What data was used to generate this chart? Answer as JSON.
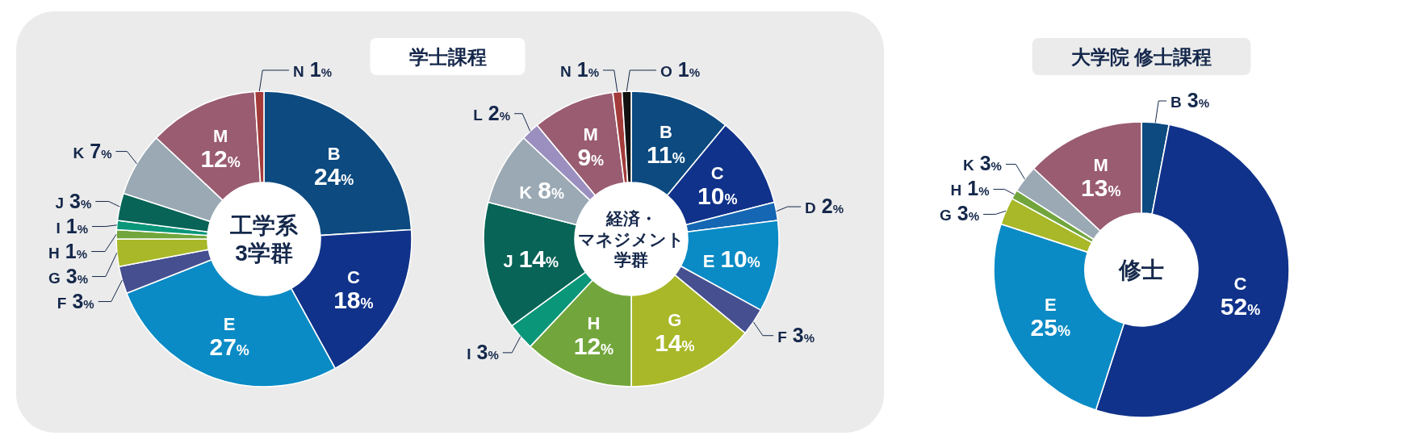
{
  "chart_data": [
    {
      "type": "donut",
      "title": "工学系3学群",
      "subtitle": "学士課程",
      "categories": [
        "B",
        "C",
        "E",
        "F",
        "G",
        "H",
        "I",
        "J",
        "K",
        "M",
        "N"
      ],
      "values": [
        24,
        18,
        27,
        3,
        3,
        1,
        1,
        3,
        7,
        12,
        1
      ],
      "value_labels": [
        "24%",
        "18%",
        "27%",
        "3%",
        "3%",
        "1%",
        "1%",
        "3%",
        "7%",
        "12%",
        "1%"
      ],
      "colors": [
        "#0c4a80",
        "#10328a",
        "#0a8bc5",
        "#464f90",
        "#a8b828",
        "#72a63c",
        "#0a9679",
        "#076457",
        "#9aa9b4",
        "#9a5c70",
        "#a33b3b"
      ]
    },
    {
      "type": "donut",
      "title": "経済・マネジメント学群",
      "categories": [
        "B",
        "C",
        "D",
        "E",
        "F",
        "G",
        "H",
        "I",
        "J",
        "K",
        "L",
        "M",
        "N",
        "O"
      ],
      "values": [
        11,
        10,
        2,
        10,
        3,
        14,
        12,
        3,
        14,
        8,
        2,
        9,
        1,
        1
      ],
      "value_labels": [
        "11%",
        "10%",
        "2%",
        "10%",
        "3%",
        "14%",
        "12%",
        "3%",
        "14%",
        "8%",
        "2%",
        "9%",
        "1%",
        "1%"
      ],
      "colors": [
        "#0c4a80",
        "#10328a",
        "#1567b3",
        "#0a8bc5",
        "#464f90",
        "#a8b828",
        "#72a63c",
        "#0a9679",
        "#076457",
        "#9aa9b4",
        "#9b8fc0",
        "#9a5c70",
        "#a33b3b",
        "#111111"
      ]
    },
    {
      "type": "donut",
      "title": "修士",
      "subtitle": "大学院 修士課程",
      "categories": [
        "B",
        "C",
        "E",
        "G",
        "H",
        "K",
        "M"
      ],
      "values": [
        3,
        52,
        25,
        3,
        1,
        3,
        13
      ],
      "value_labels": [
        "3%",
        "52%",
        "25%",
        "3%",
        "1%",
        "3%",
        "13%"
      ],
      "colors": [
        "#0c4a80",
        "#10328a",
        "#0a8bc5",
        "#a8b828",
        "#72a63c",
        "#9aa9b4",
        "#9a5c70"
      ]
    }
  ]
}
